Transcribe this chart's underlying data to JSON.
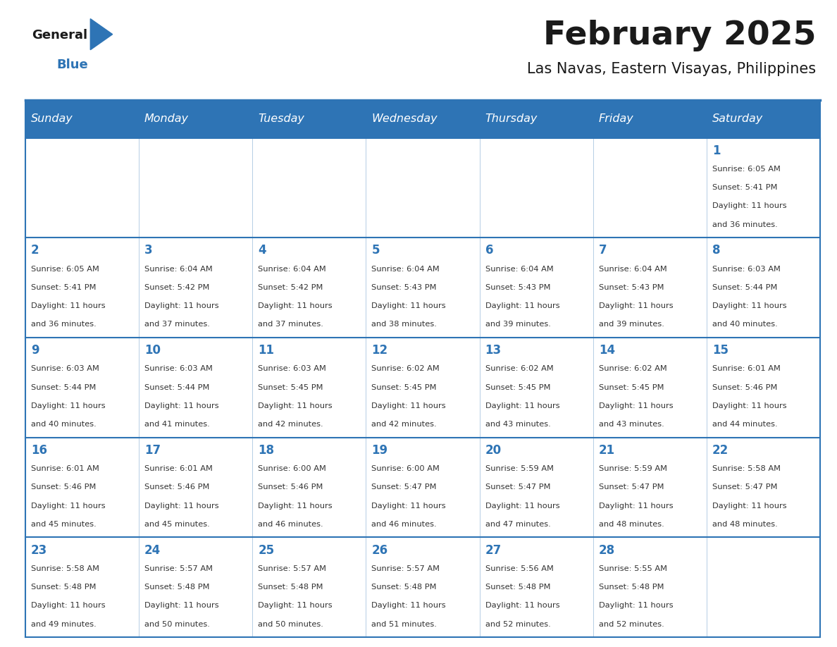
{
  "title": "February 2025",
  "subtitle": "Las Navas, Eastern Visayas, Philippines",
  "days_of_week": [
    "Sunday",
    "Monday",
    "Tuesday",
    "Wednesday",
    "Thursday",
    "Friday",
    "Saturday"
  ],
  "header_bg": "#2E74B5",
  "header_text": "#FFFFFF",
  "cell_bg_light": "#FFFFFF",
  "border_color": "#2E74B5",
  "text_color": "#333333",
  "title_color": "#1a1a1a",
  "logo_blue": "#2E74B5",
  "logo_black": "#1a1a1a",
  "calendar_data": [
    [
      null,
      null,
      null,
      null,
      null,
      null,
      {
        "day": 1,
        "sunrise": "6:05 AM",
        "sunset": "5:41 PM",
        "daylight": "11 hours and 36 minutes."
      }
    ],
    [
      {
        "day": 2,
        "sunrise": "6:05 AM",
        "sunset": "5:41 PM",
        "daylight": "11 hours and 36 minutes."
      },
      {
        "day": 3,
        "sunrise": "6:04 AM",
        "sunset": "5:42 PM",
        "daylight": "11 hours and 37 minutes."
      },
      {
        "day": 4,
        "sunrise": "6:04 AM",
        "sunset": "5:42 PM",
        "daylight": "11 hours and 37 minutes."
      },
      {
        "day": 5,
        "sunrise": "6:04 AM",
        "sunset": "5:43 PM",
        "daylight": "11 hours and 38 minutes."
      },
      {
        "day": 6,
        "sunrise": "6:04 AM",
        "sunset": "5:43 PM",
        "daylight": "11 hours and 39 minutes."
      },
      {
        "day": 7,
        "sunrise": "6:04 AM",
        "sunset": "5:43 PM",
        "daylight": "11 hours and 39 minutes."
      },
      {
        "day": 8,
        "sunrise": "6:03 AM",
        "sunset": "5:44 PM",
        "daylight": "11 hours and 40 minutes."
      }
    ],
    [
      {
        "day": 9,
        "sunrise": "6:03 AM",
        "sunset": "5:44 PM",
        "daylight": "11 hours and 40 minutes."
      },
      {
        "day": 10,
        "sunrise": "6:03 AM",
        "sunset": "5:44 PM",
        "daylight": "11 hours and 41 minutes."
      },
      {
        "day": 11,
        "sunrise": "6:03 AM",
        "sunset": "5:45 PM",
        "daylight": "11 hours and 42 minutes."
      },
      {
        "day": 12,
        "sunrise": "6:02 AM",
        "sunset": "5:45 PM",
        "daylight": "11 hours and 42 minutes."
      },
      {
        "day": 13,
        "sunrise": "6:02 AM",
        "sunset": "5:45 PM",
        "daylight": "11 hours and 43 minutes."
      },
      {
        "day": 14,
        "sunrise": "6:02 AM",
        "sunset": "5:45 PM",
        "daylight": "11 hours and 43 minutes."
      },
      {
        "day": 15,
        "sunrise": "6:01 AM",
        "sunset": "5:46 PM",
        "daylight": "11 hours and 44 minutes."
      }
    ],
    [
      {
        "day": 16,
        "sunrise": "6:01 AM",
        "sunset": "5:46 PM",
        "daylight": "11 hours and 45 minutes."
      },
      {
        "day": 17,
        "sunrise": "6:01 AM",
        "sunset": "5:46 PM",
        "daylight": "11 hours and 45 minutes."
      },
      {
        "day": 18,
        "sunrise": "6:00 AM",
        "sunset": "5:46 PM",
        "daylight": "11 hours and 46 minutes."
      },
      {
        "day": 19,
        "sunrise": "6:00 AM",
        "sunset": "5:47 PM",
        "daylight": "11 hours and 46 minutes."
      },
      {
        "day": 20,
        "sunrise": "5:59 AM",
        "sunset": "5:47 PM",
        "daylight": "11 hours and 47 minutes."
      },
      {
        "day": 21,
        "sunrise": "5:59 AM",
        "sunset": "5:47 PM",
        "daylight": "11 hours and 48 minutes."
      },
      {
        "day": 22,
        "sunrise": "5:58 AM",
        "sunset": "5:47 PM",
        "daylight": "11 hours and 48 minutes."
      }
    ],
    [
      {
        "day": 23,
        "sunrise": "5:58 AM",
        "sunset": "5:48 PM",
        "daylight": "11 hours and 49 minutes."
      },
      {
        "day": 24,
        "sunrise": "5:57 AM",
        "sunset": "5:48 PM",
        "daylight": "11 hours and 50 minutes."
      },
      {
        "day": 25,
        "sunrise": "5:57 AM",
        "sunset": "5:48 PM",
        "daylight": "11 hours and 50 minutes."
      },
      {
        "day": 26,
        "sunrise": "5:57 AM",
        "sunset": "5:48 PM",
        "daylight": "11 hours and 51 minutes."
      },
      {
        "day": 27,
        "sunrise": "5:56 AM",
        "sunset": "5:48 PM",
        "daylight": "11 hours and 52 minutes."
      },
      {
        "day": 28,
        "sunrise": "5:55 AM",
        "sunset": "5:48 PM",
        "daylight": "11 hours and 52 minutes."
      },
      null
    ]
  ]
}
